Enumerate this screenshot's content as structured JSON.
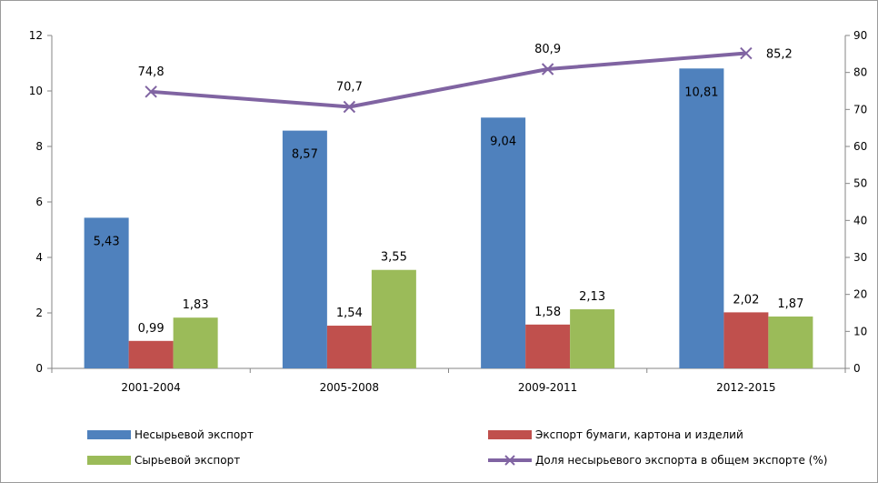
{
  "chart_data": {
    "type": "bar",
    "categories": [
      "2001-2004",
      "2005-2008",
      "2009-2011",
      "2012-2015"
    ],
    "series": [
      {
        "name": "Несырьевой экспорт",
        "kind": "bar",
        "axis": "left",
        "color": "#4F81BD",
        "values": [
          5.43,
          8.57,
          9.04,
          10.81
        ],
        "labels": [
          "5,43",
          "8,57",
          "9,04",
          "10,81"
        ]
      },
      {
        "name": "Экспорт бумаги, картона и изделий",
        "kind": "bar",
        "axis": "left",
        "color": "#C0504D",
        "values": [
          0.99,
          1.54,
          1.58,
          2.02
        ],
        "labels": [
          "0,99",
          "1,54",
          "1,58",
          "2,02"
        ]
      },
      {
        "name": "Сырьевой экспорт",
        "kind": "bar",
        "axis": "left",
        "color": "#9BBB59",
        "values": [
          1.83,
          3.55,
          2.13,
          1.87
        ],
        "labels": [
          "1,83",
          "3,55",
          "2,13",
          "1,87"
        ]
      },
      {
        "name": "Доля несырьевого экспорта в общем экспорте (%)",
        "kind": "line",
        "axis": "right",
        "color": "#8064A2",
        "values": [
          74.8,
          70.7,
          80.9,
          85.2
        ],
        "labels": [
          "74,8",
          "70,7",
          "80,9",
          "85,2"
        ]
      }
    ],
    "y_left": {
      "ylim": [
        0,
        12
      ],
      "ticks": [
        "0",
        "2",
        "4",
        "6",
        "8",
        "10",
        "12"
      ]
    },
    "y_right": {
      "ylim": [
        0,
        90
      ],
      "ticks": [
        "0",
        "10",
        "20",
        "30",
        "40",
        "50",
        "60",
        "70",
        "80",
        "90"
      ]
    },
    "legend_placement": "bottom",
    "grid": false
  }
}
